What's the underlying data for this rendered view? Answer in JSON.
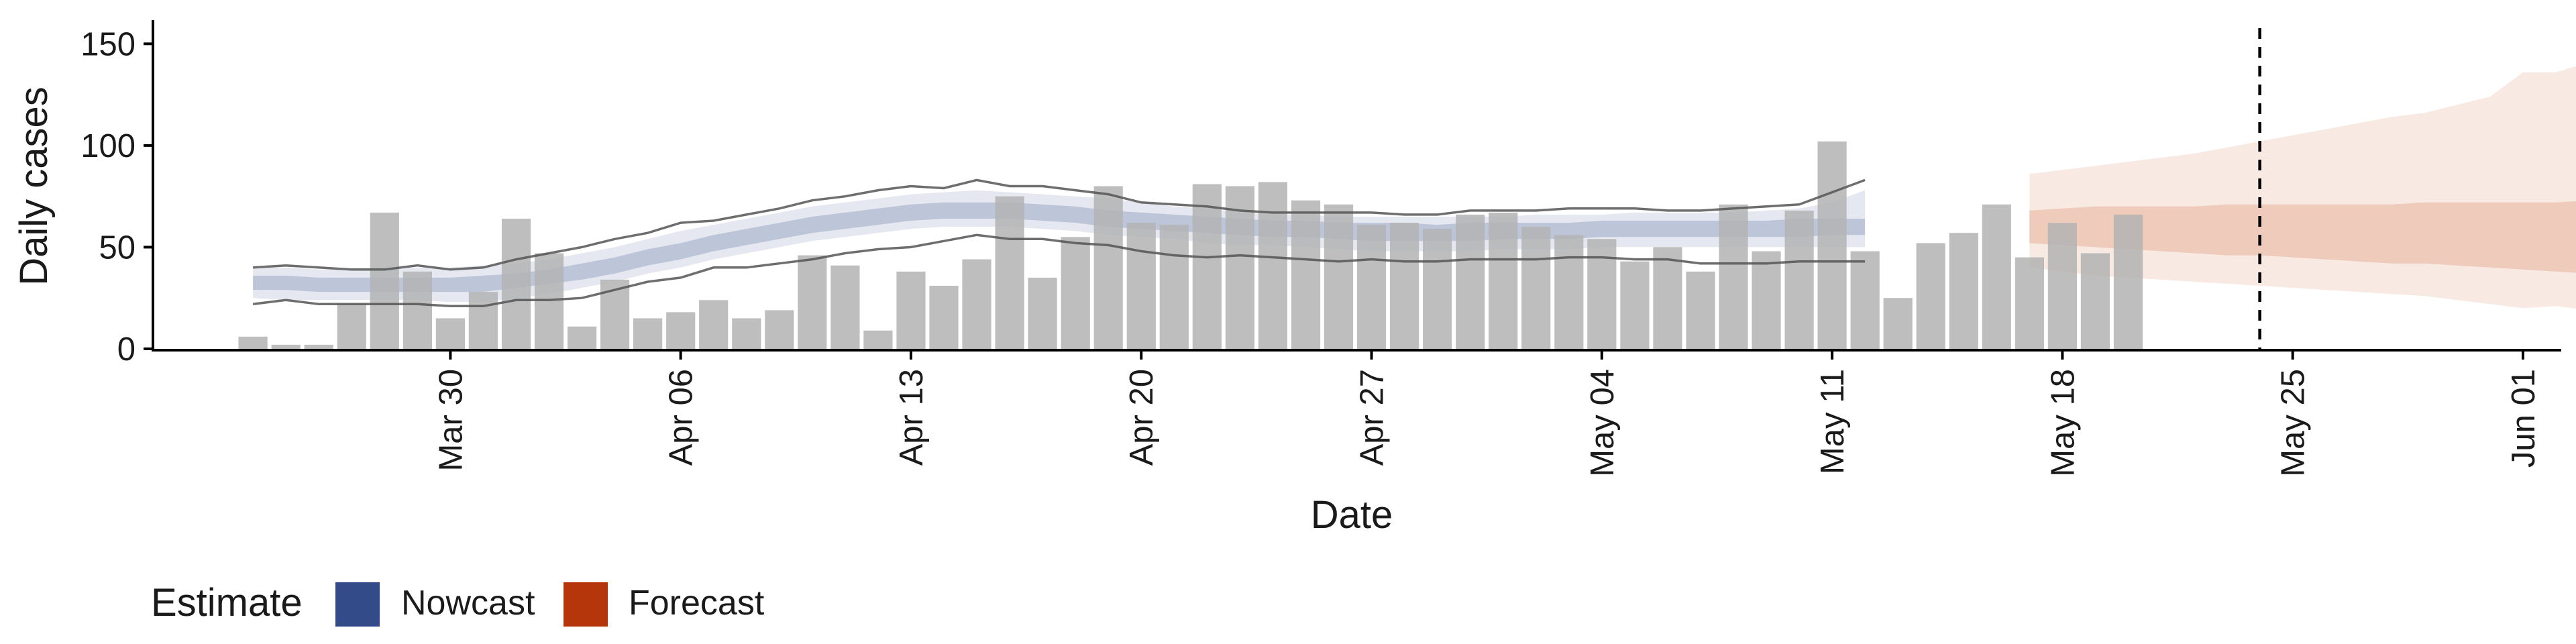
{
  "chart_data": {
    "type": "bar",
    "xlabel": "Date",
    "ylabel": "Daily cases",
    "ylim": [
      0,
      160
    ],
    "xlim": [
      "2020-03-21",
      "2020-06-02"
    ],
    "y_ticks": [
      0,
      50,
      100,
      150
    ],
    "x_ticks": [
      {
        "date": "2020-03-30",
        "label": "Mar 30"
      },
      {
        "date": "2020-04-06",
        "label": "Apr 06"
      },
      {
        "date": "2020-04-13",
        "label": "Apr 13"
      },
      {
        "date": "2020-04-20",
        "label": "Apr 20"
      },
      {
        "date": "2020-04-27",
        "label": "Apr 27"
      },
      {
        "date": "2020-05-04",
        "label": "May 04"
      },
      {
        "date": "2020-05-11",
        "label": "May 11"
      },
      {
        "date": "2020-05-18",
        "label": "May 18"
      },
      {
        "date": "2020-05-25",
        "label": "May 25"
      },
      {
        "date": "2020-06-01",
        "label": "Jun 01"
      }
    ],
    "grid": false,
    "legend_position": "bottom-left",
    "legend": {
      "title": "Estimate",
      "items": [
        {
          "label": "Nowcast",
          "color": "#344b8a"
        },
        {
          "label": "Forecast",
          "color": "#b5360b"
        }
      ]
    },
    "vline_date": "2020-05-24",
    "colors": {
      "bar": "#b3b3b3",
      "nowcast": "#344b8a",
      "forecast": "#c8541f",
      "bounds": "#555555"
    },
    "bars": {
      "start_date": "2020-03-24",
      "values": [
        6,
        2,
        2,
        22,
        67,
        38,
        15,
        28,
        64,
        47,
        11,
        34,
        15,
        18,
        24,
        15,
        19,
        46,
        41,
        9,
        38,
        31,
        44,
        75,
        35,
        55,
        80,
        62,
        61,
        81,
        80,
        82,
        73,
        71,
        61,
        62,
        59,
        66,
        67,
        60,
        56,
        54,
        43,
        50,
        38,
        71,
        48,
        68,
        102,
        48,
        25,
        52,
        57,
        71,
        45,
        62,
        47,
        66
      ]
    },
    "nowcast": {
      "start_date": "2020-03-24",
      "outer_lower": [
        25,
        24,
        24,
        24,
        24,
        24,
        23,
        23,
        25,
        27,
        30,
        33,
        37,
        40,
        44,
        47,
        50,
        53,
        55,
        57,
        59,
        60,
        60,
        60,
        59,
        58,
        56,
        55,
        54,
        52,
        51,
        51,
        50,
        49,
        48,
        48,
        48,
        48,
        49,
        49,
        49,
        50,
        50,
        50,
        50,
        50,
        50,
        50,
        50,
        50
      ],
      "outer_upper": [
        40,
        40,
        39,
        39,
        40,
        40,
        40,
        41,
        42,
        44,
        47,
        50,
        54,
        58,
        61,
        64,
        67,
        70,
        72,
        74,
        76,
        77,
        78,
        77,
        76,
        75,
        74,
        72,
        70,
        69,
        67,
        66,
        66,
        65,
        65,
        65,
        65,
        65,
        65,
        66,
        66,
        66,
        67,
        67,
        67,
        67,
        68,
        69,
        72,
        78
      ],
      "inner_lower": [
        29,
        29,
        28,
        28,
        28,
        28,
        28,
        28,
        30,
        32,
        34,
        37,
        41,
        44,
        48,
        51,
        54,
        57,
        59,
        61,
        63,
        64,
        64,
        64,
        63,
        62,
        60,
        59,
        58,
        57,
        56,
        55,
        55,
        54,
        53,
        53,
        53,
        53,
        54,
        54,
        54,
        55,
        55,
        55,
        55,
        55,
        55,
        55,
        56,
        56
      ],
      "inner_upper": [
        36,
        36,
        35,
        35,
        35,
        35,
        35,
        36,
        37,
        39,
        42,
        45,
        49,
        52,
        56,
        59,
        62,
        65,
        67,
        69,
        71,
        72,
        72,
        72,
        71,
        70,
        68,
        67,
        66,
        65,
        64,
        63,
        63,
        62,
        62,
        62,
        61,
        62,
        62,
        62,
        62,
        63,
        63,
        63,
        63,
        63,
        63,
        64,
        64,
        64
      ],
      "median": [
        33,
        32,
        32,
        31,
        32,
        32,
        31,
        32,
        34,
        36,
        38,
        41,
        45,
        48,
        52,
        55,
        58,
        61,
        63,
        65,
        67,
        68,
        68,
        68,
        67,
        66,
        64,
        63,
        62,
        61,
        60,
        59,
        59,
        58,
        57,
        57,
        57,
        57,
        58,
        58,
        58,
        59,
        59,
        59,
        59,
        59,
        59,
        60,
        60,
        60
      ],
      "line_upper": [
        40,
        41,
        40,
        39,
        39,
        41,
        39,
        40,
        44,
        47,
        50,
        54,
        57,
        62,
        63,
        66,
        69,
        73,
        75,
        78,
        80,
        79,
        83,
        80,
        80,
        78,
        76,
        72,
        71,
        70,
        68,
        67,
        67,
        67,
        67,
        66,
        66,
        68,
        68,
        68,
        69,
        69,
        69,
        68,
        68,
        69,
        70,
        71,
        77,
        83
      ],
      "line_lower": [
        22,
        24,
        22,
        22,
        22,
        22,
        21,
        21,
        24,
        24,
        25,
        29,
        33,
        35,
        40,
        40,
        42,
        44,
        47,
        49,
        50,
        53,
        56,
        54,
        54,
        52,
        51,
        48,
        46,
        45,
        46,
        45,
        44,
        43,
        44,
        43,
        43,
        44,
        44,
        44,
        45,
        45,
        44,
        44,
        42,
        42,
        42,
        43,
        43,
        43
      ]
    },
    "forecast": {
      "start_date": "2020-05-17",
      "outer_lower": [
        40,
        38,
        36,
        35,
        34,
        33,
        32,
        31,
        30,
        29,
        28,
        27,
        26,
        24,
        22,
        20,
        21,
        19,
        18,
        17
      ],
      "outer_upper": [
        86,
        88,
        90,
        92,
        94,
        96,
        99,
        102,
        105,
        108,
        111,
        114,
        116,
        120,
        124,
        136,
        136,
        141,
        146,
        151
      ],
      "inner_lower": [
        52,
        51,
        50,
        49,
        48,
        47,
        46,
        46,
        45,
        44,
        43,
        42,
        42,
        41,
        40,
        39,
        38,
        37,
        37,
        36
      ],
      "inner_upper": [
        68,
        69,
        70,
        70,
        70,
        70,
        71,
        71,
        71,
        71,
        71,
        71,
        72,
        72,
        72,
        72,
        72,
        73,
        73,
        73
      ]
    }
  }
}
